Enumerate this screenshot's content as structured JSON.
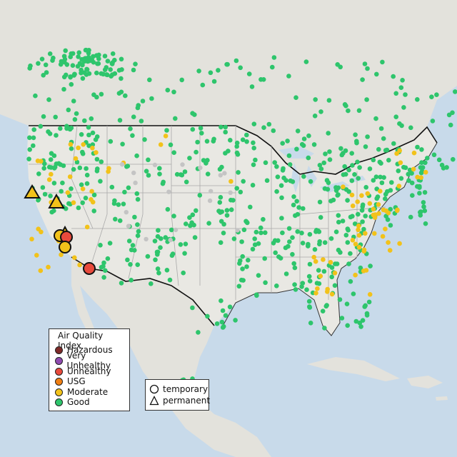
{
  "legend": {
    "title": "Air Quality Index",
    "categories": [
      {
        "label": "Hazardous",
        "color": "#7e2a28"
      },
      {
        "label": "Very Unhealthy",
        "color": "#8f4bb0"
      },
      {
        "label": "Unhealthy",
        "color": "#e84a3c"
      },
      {
        "label": "USG",
        "color": "#f07f13"
      },
      {
        "label": "Moderate",
        "color": "#f2c21a"
      },
      {
        "label": "Good",
        "color": "#2ec56c"
      }
    ],
    "types": [
      {
        "label": "temporary",
        "icon": "circle-icon"
      },
      {
        "label": "permanent",
        "icon": "triangle-icon"
      }
    ]
  },
  "colors": {
    "ocean": "#c8daea",
    "land": "#e3e2dc",
    "us_land": "#e9e8e3",
    "border": "#111111",
    "state_lines": "#a9a9a9"
  },
  "monitors": {
    "moderate_temporary_markers": 3,
    "unhealthy_temporary_markers": 2,
    "moderate_permanent_markers": 2
  }
}
